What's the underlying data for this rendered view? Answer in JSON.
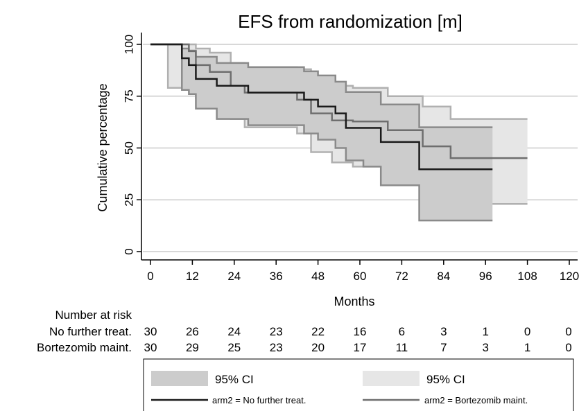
{
  "chart_data": {
    "type": "line",
    "title": "EFS from randomization [m]",
    "xlabel": "Months",
    "ylabel": "Cumulative percentage",
    "xlim": [
      0,
      120
    ],
    "ylim": [
      0,
      100
    ],
    "xticks": [
      0,
      12,
      24,
      36,
      48,
      60,
      72,
      84,
      96,
      108,
      120
    ],
    "yticks": [
      0,
      25,
      50,
      75,
      100
    ],
    "grid": "horizontal",
    "legend_position": "bottom",
    "series": [
      {
        "name": "arm2 = No further treat.",
        "color": "#1a1a1a",
        "x": [
          0,
          5,
          9,
          11,
          13,
          19,
          28,
          44,
          48,
          53,
          56,
          61,
          66,
          77,
          98
        ],
        "y": [
          100,
          100,
          93.3,
          90,
          83.3,
          80,
          76.7,
          73.3,
          70,
          66.7,
          59.7,
          59.7,
          52.9,
          39.7,
          39.7
        ]
      },
      {
        "name": "arm2 = Bortezomib maint.",
        "color": "#6e6e6e",
        "x": [
          0,
          5,
          11,
          13,
          17,
          23,
          27,
          42,
          46,
          52,
          58,
          68,
          78,
          86,
          108
        ],
        "y": [
          100,
          100,
          96.7,
          90,
          86.7,
          80,
          76.7,
          73.3,
          66.7,
          63.3,
          62.8,
          58.6,
          50.8,
          45.1,
          45.1
        ]
      }
    ],
    "ci_bands": [
      {
        "label": "95% CI",
        "color": "#cccccc",
        "x": [
          0,
          5,
          9,
          11,
          13,
          19,
          28,
          44,
          48,
          53,
          56,
          61,
          66,
          77,
          98
        ],
        "lower": [
          100,
          100,
          78,
          76,
          69,
          64,
          61,
          57,
          54,
          50,
          44,
          41,
          32,
          15,
          15
        ],
        "upper": [
          100,
          100,
          98,
          97,
          94,
          91,
          89,
          87,
          85,
          82,
          77,
          77,
          71,
          60,
          60
        ]
      },
      {
        "label": "95% CI",
        "color": "#e6e6e6",
        "x": [
          0,
          5,
          11,
          13,
          17,
          23,
          27,
          42,
          46,
          52,
          58,
          68,
          78,
          86,
          108
        ],
        "lower": [
          100,
          79,
          78,
          74,
          70,
          64,
          60,
          57,
          48,
          43,
          41,
          38,
          30,
          23,
          23
        ],
        "upper": [
          100,
          100,
          100,
          98,
          96,
          91,
          89,
          88,
          84,
          80,
          79,
          75,
          70,
          64,
          64
        ]
      }
    ],
    "risk_table": {
      "title": "Number at risk",
      "rows": [
        {
          "label": "No further treat.",
          "values": [
            "30",
            "26",
            "24",
            "23",
            "22",
            "16",
            "6",
            "3",
            "1",
            "0",
            "0"
          ]
        },
        {
          "label": "Bortezomib maint.",
          "values": [
            "30",
            "29",
            "25",
            "23",
            "20",
            "17",
            "11",
            "7",
            "3",
            "1",
            "0"
          ]
        }
      ]
    }
  }
}
